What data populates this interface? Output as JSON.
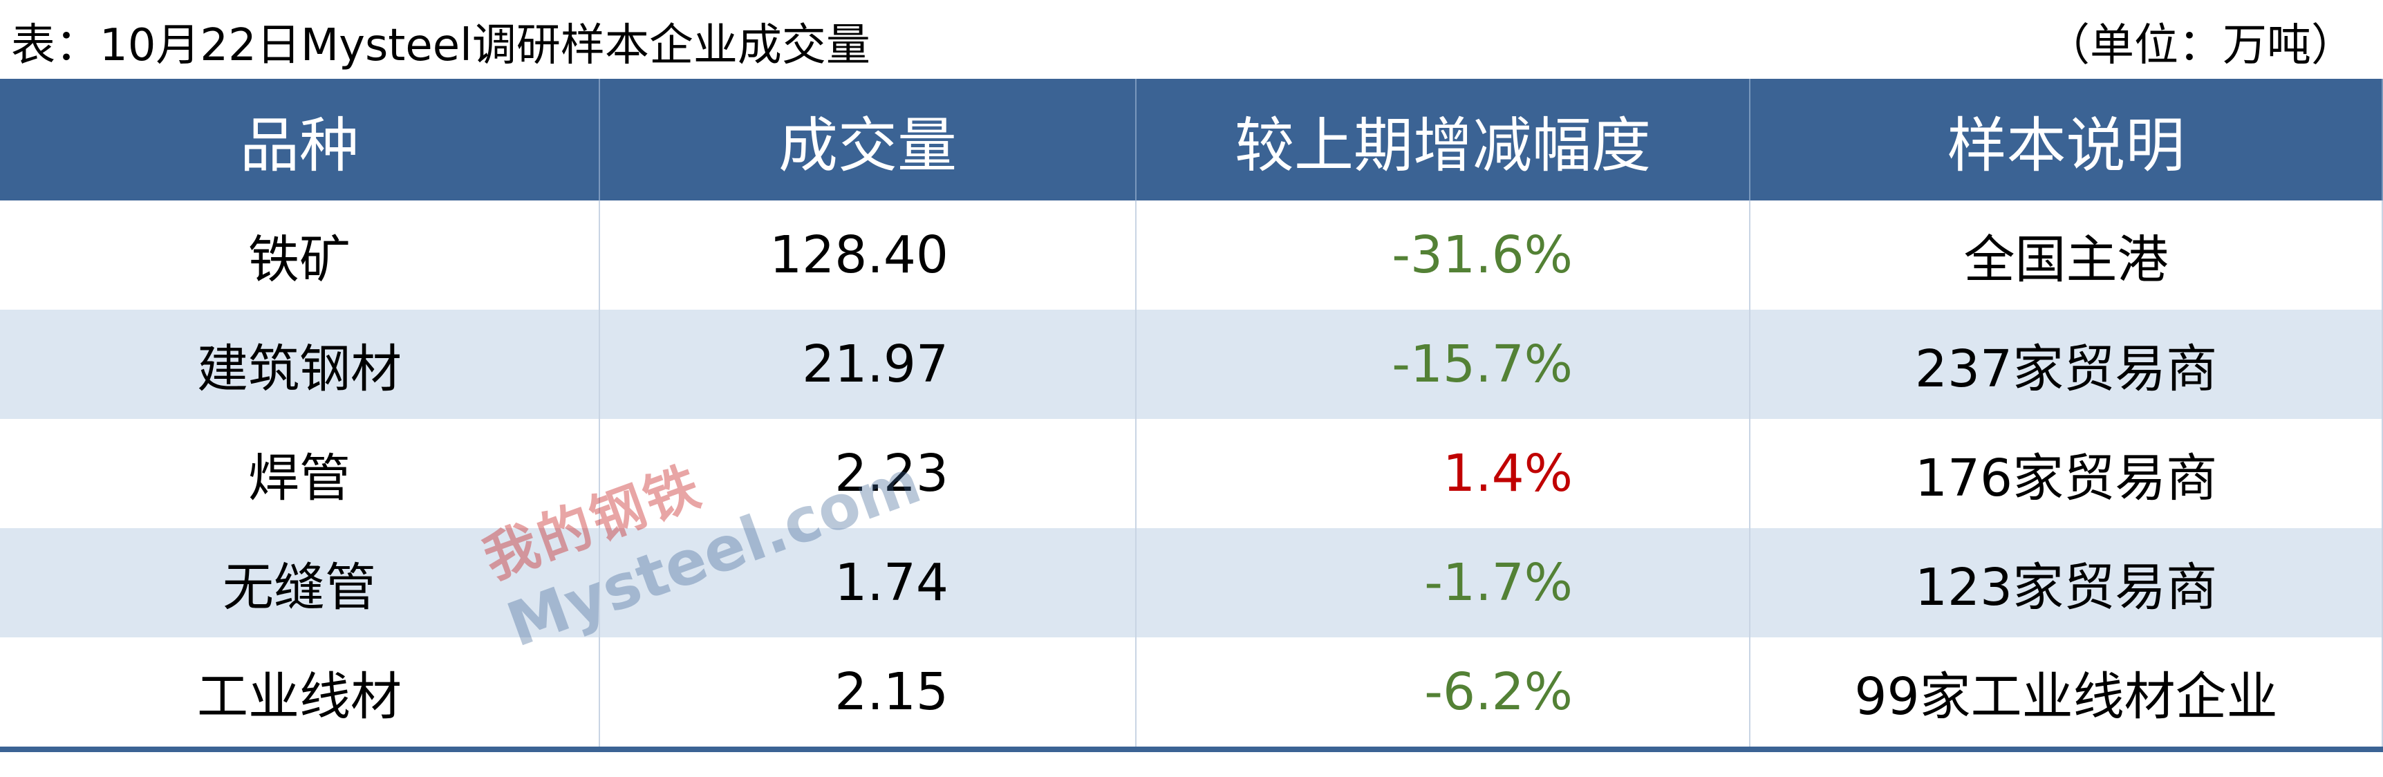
{
  "header": {
    "title": "表：10月22日Mysteel调研样本企业成交量",
    "unit": "（单位：万吨）"
  },
  "table": {
    "columns": [
      "品种",
      "成交量",
      "较上期增减幅度",
      "样本说明"
    ],
    "rows": [
      [
        "铁矿",
        "128.40",
        "-31.6%",
        "全国主港"
      ],
      [
        "建筑钢材",
        "21.97",
        "-15.7%",
        "237家贸易商"
      ],
      [
        "焊管",
        "2.23",
        "1.4%",
        "176家贸易商"
      ],
      [
        "无缝管",
        "1.74",
        "-1.7%",
        "123家贸易商"
      ],
      [
        "工业线材",
        "2.15",
        "-6.2%",
        "99家工业线材企业"
      ]
    ],
    "change_colors": [
      "#538135",
      "#538135",
      "#c00000",
      "#538135",
      "#538135"
    ]
  },
  "watermark": {
    "brand": "我的钢铁",
    "site": "Mysteel.com"
  }
}
